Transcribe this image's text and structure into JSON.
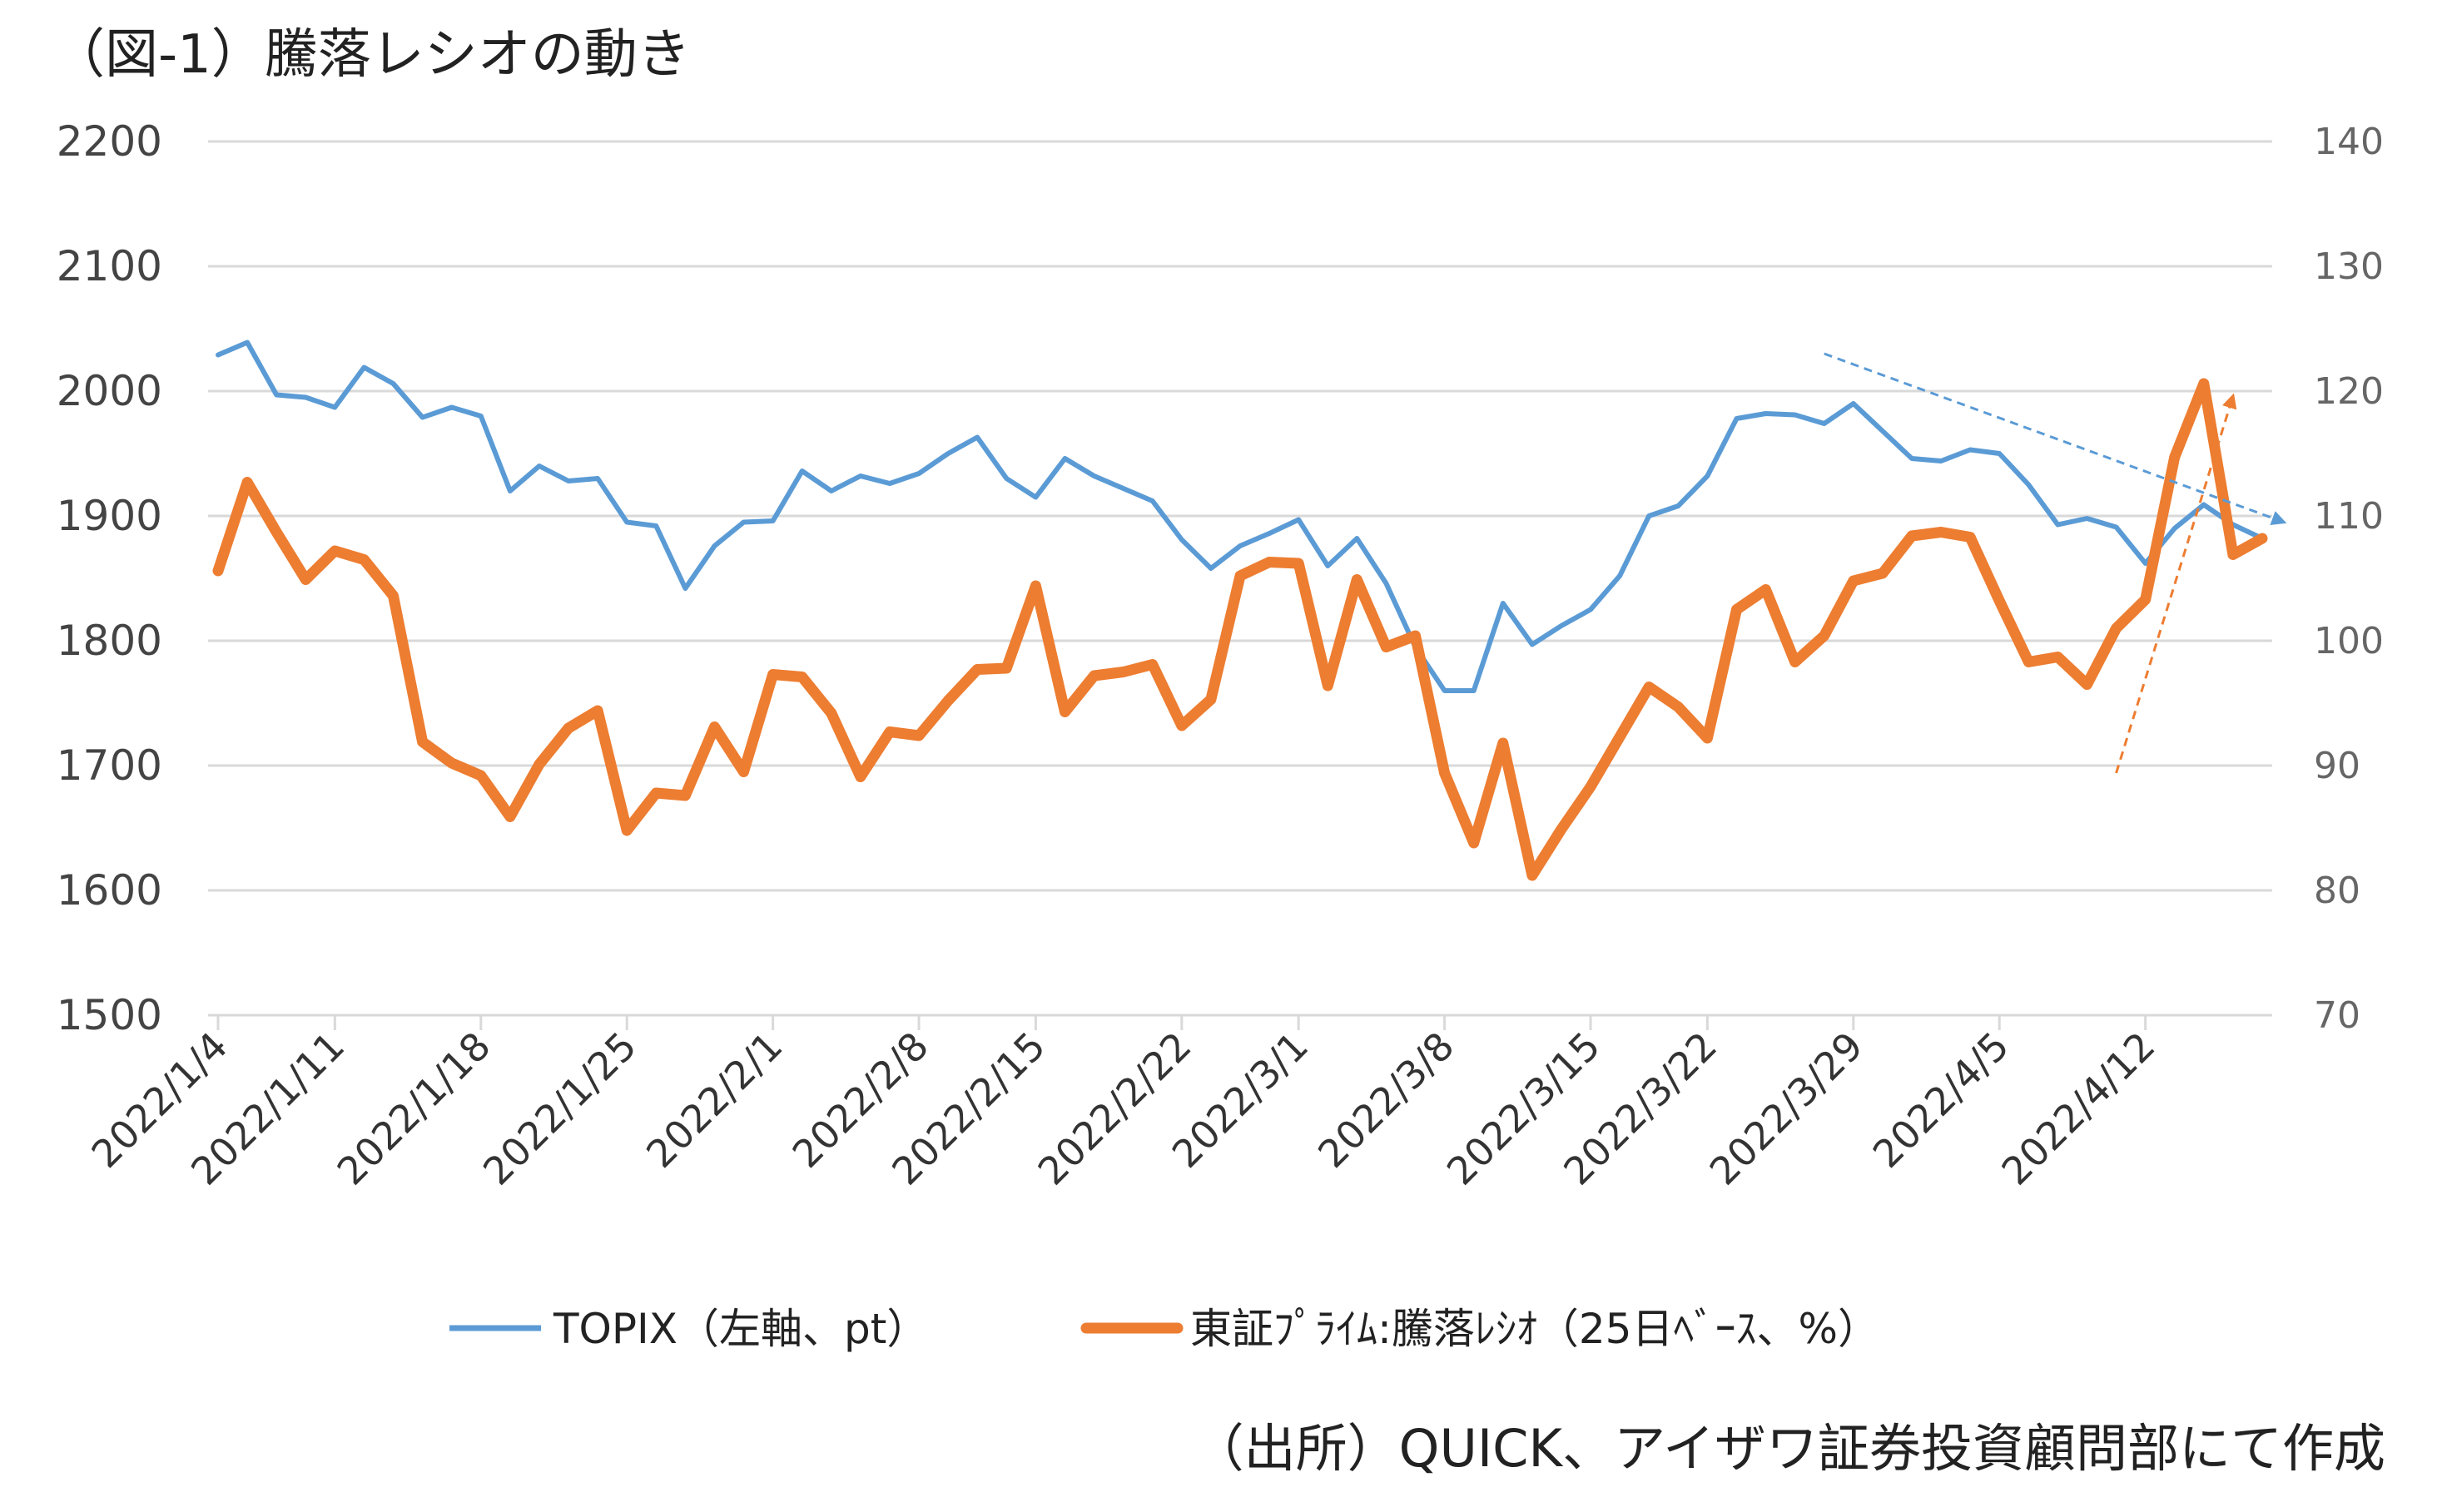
{
  "title": "（図-1）騰落レシオの動き",
  "source": "（出所）QUICK、アイザワ証券投資顧問部にて作成",
  "chart_data": {
    "type": "line",
    "dates": [
      "2022/1/4",
      "2022/1/5",
      "2022/1/6",
      "2022/1/7",
      "2022/1/11",
      "2022/1/12",
      "2022/1/13",
      "2022/1/14",
      "2022/1/17",
      "2022/1/18",
      "2022/1/19",
      "2022/1/20",
      "2022/1/21",
      "2022/1/24",
      "2022/1/25",
      "2022/1/26",
      "2022/1/27",
      "2022/1/28",
      "2022/1/31",
      "2022/2/1",
      "2022/2/2",
      "2022/2/3",
      "2022/2/4",
      "2022/2/7",
      "2022/2/8",
      "2022/2/9",
      "2022/2/10",
      "2022/2/14",
      "2022/2/15",
      "2022/2/16",
      "2022/2/17",
      "2022/2/18",
      "2022/2/21",
      "2022/2/22",
      "2022/2/24",
      "2022/2/25",
      "2022/2/28",
      "2022/3/1",
      "2022/3/2",
      "2022/3/3",
      "2022/3/4",
      "2022/3/7",
      "2022/3/8",
      "2022/3/9",
      "2022/3/10",
      "2022/3/11",
      "2022/3/14",
      "2022/3/15",
      "2022/3/16",
      "2022/3/17",
      "2022/3/18",
      "2022/3/22",
      "2022/3/23",
      "2022/3/24",
      "2022/3/25",
      "2022/3/28",
      "2022/3/29",
      "2022/3/30",
      "2022/3/31",
      "2022/4/1",
      "2022/4/4",
      "2022/4/5",
      "2022/4/6",
      "2022/4/7",
      "2022/4/8",
      "2022/4/11",
      "2022/4/12",
      "2022/4/13",
      "2022/4/14",
      "2022/4/15",
      "2022/4/18"
    ],
    "x_ticks": [
      "2022/1/4",
      "2022/1/11",
      "2022/1/18",
      "2022/1/25",
      "2022/2/1",
      "2022/2/8",
      "2022/2/15",
      "2022/2/22",
      "2022/3/1",
      "2022/3/8",
      "2022/3/15",
      "2022/3/22",
      "2022/3/29",
      "2022/4/5",
      "2022/4/12"
    ],
    "y_left": {
      "min": 1500,
      "max": 2200,
      "ticks": [
        1500,
        1600,
        1700,
        1800,
        1900,
        2000,
        2100,
        2200
      ]
    },
    "y_right": {
      "min": 70,
      "max": 140,
      "ticks": [
        70,
        80,
        90,
        100,
        110,
        120,
        130,
        140
      ]
    },
    "grid": true,
    "legend_position": "bottom",
    "series": [
      {
        "name": "TOPIX（左軸、pt）",
        "axis": "left",
        "color": "#5B9BD5",
        "values": [
          2029,
          2039,
          1997,
          1995,
          1987,
          2019,
          2006,
          1979,
          1987,
          1980,
          1920,
          1940,
          1928,
          1930,
          1895,
          1892,
          1842,
          1876,
          1895,
          1896,
          1936,
          1920,
          1932,
          1926,
          1934,
          1950,
          1963,
          1930,
          1915,
          1946,
          1932,
          1922,
          1912,
          1881,
          1858,
          1876,
          1886,
          1897,
          1860,
          1882,
          1846,
          1795,
          1760,
          1760,
          1830,
          1797,
          1812,
          1825,
          1852,
          1900,
          1908,
          1932,
          1978,
          1982,
          1981,
          1974,
          1990,
          1968,
          1946,
          1944,
          1953,
          1950,
          1925,
          1893,
          1898,
          1891,
          1862,
          1890,
          1909,
          1893,
          1882
        ]
      },
      {
        "name": "東証ﾌﾟﾗｲﾑ:騰落ﾚｼｵ（25日ﾍﾞｰｽ、%）",
        "axis": "right",
        "color": "#ED7D31",
        "values": [
          105.6,
          112.7,
          108.7,
          104.9,
          107.2,
          106.5,
          103.6,
          91.9,
          90.2,
          89.2,
          85.9,
          90.1,
          93.0,
          94.4,
          84.8,
          87.8,
          87.6,
          93.1,
          89.5,
          97.3,
          97.1,
          94.2,
          89.1,
          92.7,
          92.4,
          95.2,
          97.7,
          97.8,
          104.4,
          94.3,
          97.2,
          97.5,
          98.1,
          93.2,
          95.3,
          105.2,
          106.3,
          106.2,
          96.4,
          104.9,
          99.5,
          100.4,
          89.4,
          83.8,
          91.8,
          81.2,
          84.9,
          88.3,
          92.3,
          96.3,
          94.7,
          92.2,
          102.5,
          104.1,
          98.3,
          100.4,
          104.8,
          105.4,
          108.4,
          108.7,
          108.3,
          103.2,
          98.3,
          98.7,
          96.5,
          101.0,
          103.3,
          114.7,
          120.6,
          106.9,
          108.2
        ]
      }
    ],
    "annotations": [
      {
        "type": "trend-arrow",
        "series": "TOPIX（左軸、pt）",
        "color": "#5B9BD5",
        "style": "dashed",
        "from": {
          "x": "2022/3/28",
          "y": 2030
        },
        "to": {
          "x": "2022/4/18",
          "y": 1895
        }
      },
      {
        "type": "trend-arrow",
        "series": "東証ﾌﾟﾗｲﾑ:騰落ﾚｼｵ（25日ﾍﾞｰｽ、%）",
        "color": "#ED7D31",
        "style": "dashed",
        "from": {
          "x": "2022/4/11",
          "y": 89.4
        },
        "to": {
          "x": "2022/4/15",
          "y": 119.6
        }
      }
    ]
  }
}
